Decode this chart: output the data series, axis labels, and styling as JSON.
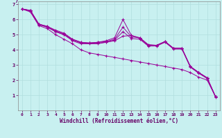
{
  "xlabel": "Windchill (Refroidissement éolien,°C)",
  "background_color": "#c8f0f0",
  "line_color": "#990099",
  "grid_color": "#b0dede",
  "xlim": [
    0,
    23
  ],
  "ylim": [
    0,
    7
  ],
  "xticks": [
    0,
    1,
    2,
    3,
    4,
    5,
    6,
    7,
    8,
    9,
    10,
    11,
    12,
    13,
    14,
    15,
    16,
    17,
    18,
    19,
    20,
    21,
    22,
    23
  ],
  "yticks": [
    1,
    2,
    3,
    4,
    5,
    6,
    7
  ],
  "series": [
    [
      6.7,
      6.6,
      5.7,
      5.5,
      5.2,
      5.0,
      4.65,
      4.45,
      4.45,
      4.45,
      4.5,
      4.6,
      4.9,
      4.95,
      4.75,
      4.3,
      4.3,
      4.55,
      4.1,
      4.1,
      2.9,
      2.5,
      2.15,
      0.9
    ],
    [
      6.7,
      6.6,
      5.7,
      5.55,
      5.3,
      5.1,
      4.7,
      4.5,
      4.45,
      4.5,
      4.6,
      4.8,
      6.0,
      4.95,
      4.8,
      4.35,
      4.3,
      4.55,
      4.1,
      4.1,
      2.9,
      2.5,
      2.15,
      0.9
    ],
    [
      6.7,
      6.6,
      5.7,
      5.55,
      5.25,
      5.05,
      4.7,
      4.5,
      4.45,
      4.5,
      4.55,
      4.7,
      5.5,
      4.85,
      4.8,
      4.3,
      4.3,
      4.55,
      4.1,
      4.1,
      2.9,
      2.5,
      2.15,
      0.9
    ],
    [
      6.7,
      6.55,
      5.65,
      5.5,
      5.2,
      5.0,
      4.6,
      4.4,
      4.4,
      4.4,
      4.5,
      4.65,
      5.2,
      4.75,
      4.7,
      4.25,
      4.25,
      4.5,
      4.05,
      4.05,
      2.85,
      2.45,
      2.1,
      0.88
    ],
    [
      6.7,
      6.5,
      5.6,
      5.4,
      5.0,
      4.7,
      4.4,
      4.0,
      3.8,
      3.7,
      3.6,
      3.5,
      3.4,
      3.3,
      3.2,
      3.1,
      3.0,
      2.9,
      2.8,
      2.7,
      2.5,
      2.2,
      2.0,
      0.9
    ]
  ]
}
